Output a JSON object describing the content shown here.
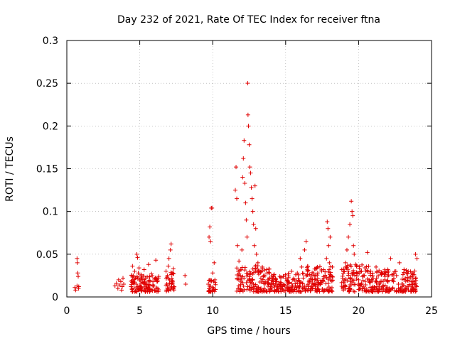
{
  "chart_data": {
    "type": "scatter",
    "title": "Day 232 of 2021, Rate Of TEC Index for receiver ftna",
    "xlabel": "GPS time / hours",
    "ylabel": "ROTI / TECUs",
    "xlim": [
      0,
      25
    ],
    "ylim": [
      0,
      0.3
    ],
    "xticks": [
      "0",
      "5",
      "10",
      "15",
      "20",
      "25"
    ],
    "yticks": [
      "0",
      "0.05",
      "0.1",
      "0.15",
      "0.2",
      "0.25",
      "0.3"
    ],
    "grid": true,
    "marker": "plus",
    "color": "#e00000",
    "series": [
      {
        "name": "ROTI",
        "points": [
          [
            0.55,
            0.011
          ],
          [
            0.6,
            0.008
          ],
          [
            0.7,
            0.013
          ],
          [
            0.7,
            0.045
          ],
          [
            0.72,
            0.04
          ],
          [
            0.75,
            0.028
          ],
          [
            0.78,
            0.024
          ],
          [
            0.8,
            0.01
          ],
          [
            0.82,
            0.012
          ],
          [
            3.3,
            0.013
          ],
          [
            3.4,
            0.016
          ],
          [
            3.5,
            0.01
          ],
          [
            3.55,
            0.02
          ],
          [
            3.6,
            0.014
          ],
          [
            3.7,
            0.018
          ],
          [
            3.75,
            0.008
          ],
          [
            3.8,
            0.012
          ],
          [
            3.85,
            0.022
          ],
          [
            3.9,
            0.015
          ],
          [
            4.4,
            0.012
          ],
          [
            4.45,
            0.025
          ],
          [
            4.5,
            0.036
          ],
          [
            4.55,
            0.018
          ],
          [
            4.6,
            0.01
          ],
          [
            4.65,
            0.03
          ],
          [
            4.7,
            0.022
          ],
          [
            4.75,
            0.015
          ],
          [
            4.8,
            0.05
          ],
          [
            4.85,
            0.046
          ],
          [
            4.9,
            0.028
          ],
          [
            4.95,
            0.034
          ],
          [
            5.0,
            0.02
          ],
          [
            5.05,
            0.012
          ],
          [
            5.1,
            0.026
          ],
          [
            5.2,
            0.017
          ],
          [
            5.3,
            0.032
          ],
          [
            5.4,
            0.022
          ],
          [
            5.5,
            0.014
          ],
          [
            5.6,
            0.038
          ],
          [
            5.7,
            0.019
          ],
          [
            5.8,
            0.027
          ],
          [
            5.9,
            0.013
          ],
          [
            6.0,
            0.021
          ],
          [
            6.1,
            0.043
          ],
          [
            6.2,
            0.018
          ],
          [
            6.3,
            0.024
          ],
          [
            6.8,
            0.03
          ],
          [
            6.85,
            0.015
          ],
          [
            6.9,
            0.025
          ],
          [
            6.95,
            0.036
          ],
          [
            7.0,
            0.045
          ],
          [
            7.05,
            0.02
          ],
          [
            7.1,
            0.055
          ],
          [
            7.15,
            0.062
          ],
          [
            7.2,
            0.028
          ],
          [
            7.25,
            0.018
          ],
          [
            7.3,
            0.033
          ],
          [
            7.35,
            0.012
          ],
          [
            8.1,
            0.025
          ],
          [
            8.15,
            0.015
          ],
          [
            9.7,
            0.015
          ],
          [
            9.75,
            0.07
          ],
          [
            9.8,
            0.082
          ],
          [
            9.85,
            0.065
          ],
          [
            9.9,
            0.104
          ],
          [
            9.95,
            0.104
          ],
          [
            10.0,
            0.028
          ],
          [
            10.05,
            0.01
          ],
          [
            10.1,
            0.04
          ],
          [
            10.15,
            0.02
          ],
          [
            11.55,
            0.125
          ],
          [
            11.6,
            0.152
          ],
          [
            11.65,
            0.115
          ],
          [
            11.7,
            0.06
          ],
          [
            11.75,
            0.03
          ],
          [
            11.8,
            0.042
          ],
          [
            11.9,
            0.025
          ],
          [
            12.0,
            0.055
          ],
          [
            12.05,
            0.14
          ],
          [
            12.1,
            0.162
          ],
          [
            12.15,
            0.183
          ],
          [
            12.2,
            0.133
          ],
          [
            12.25,
            0.11
          ],
          [
            12.3,
            0.09
          ],
          [
            12.35,
            0.07
          ],
          [
            12.4,
            0.25
          ],
          [
            12.42,
            0.213
          ],
          [
            12.45,
            0.2
          ],
          [
            12.5,
            0.178
          ],
          [
            12.55,
            0.152
          ],
          [
            12.6,
            0.145
          ],
          [
            12.65,
            0.128
          ],
          [
            12.7,
            0.115
          ],
          [
            12.75,
            0.1
          ],
          [
            12.8,
            0.085
          ],
          [
            12.85,
            0.06
          ],
          [
            12.9,
            0.13
          ],
          [
            12.95,
            0.08
          ],
          [
            13.0,
            0.05
          ],
          [
            13.1,
            0.04
          ],
          [
            13.2,
            0.03
          ],
          [
            13.3,
            0.022
          ],
          [
            13.4,
            0.035
          ],
          [
            13.5,
            0.025
          ],
          [
            13.6,
            0.018
          ],
          [
            13.7,
            0.032
          ],
          [
            13.8,
            0.02
          ],
          [
            13.9,
            0.028
          ],
          [
            14.0,
            0.015
          ],
          [
            14.2,
            0.026
          ],
          [
            14.4,
            0.018
          ],
          [
            14.6,
            0.024
          ],
          [
            14.8,
            0.012
          ],
          [
            15.0,
            0.022
          ],
          [
            15.2,
            0.016
          ],
          [
            15.4,
            0.03
          ],
          [
            15.6,
            0.02
          ],
          [
            15.8,
            0.028
          ],
          [
            16.0,
            0.045
          ],
          [
            16.1,
            0.035
          ],
          [
            16.2,
            0.022
          ],
          [
            16.3,
            0.055
          ],
          [
            16.4,
            0.065
          ],
          [
            16.5,
            0.03
          ],
          [
            16.6,
            0.018
          ],
          [
            16.8,
            0.025
          ],
          [
            17.0,
            0.02
          ],
          [
            17.2,
            0.028
          ],
          [
            17.4,
            0.015
          ],
          [
            17.6,
            0.032
          ],
          [
            17.8,
            0.045
          ],
          [
            17.85,
            0.088
          ],
          [
            17.9,
            0.08
          ],
          [
            17.95,
            0.06
          ],
          [
            18.0,
            0.04
          ],
          [
            18.05,
            0.07
          ],
          [
            18.1,
            0.025
          ],
          [
            18.2,
            0.035
          ],
          [
            18.9,
            0.022
          ],
          [
            19.0,
            0.03
          ],
          [
            19.1,
            0.04
          ],
          [
            19.2,
            0.055
          ],
          [
            19.3,
            0.07
          ],
          [
            19.4,
            0.085
          ],
          [
            19.5,
            0.112
          ],
          [
            19.55,
            0.1
          ],
          [
            19.6,
            0.095
          ],
          [
            19.65,
            0.06
          ],
          [
            19.7,
            0.05
          ],
          [
            19.8,
            0.038
          ],
          [
            19.9,
            0.028
          ],
          [
            20.0,
            0.02
          ],
          [
            20.2,
            0.03
          ],
          [
            20.4,
            0.025
          ],
          [
            20.6,
            0.052
          ],
          [
            20.8,
            0.018
          ],
          [
            21.0,
            0.022
          ],
          [
            21.2,
            0.035
          ],
          [
            21.4,
            0.015
          ],
          [
            21.6,
            0.028
          ],
          [
            21.8,
            0.02
          ],
          [
            22.0,
            0.032
          ],
          [
            22.2,
            0.045
          ],
          [
            22.4,
            0.018
          ],
          [
            22.6,
            0.025
          ],
          [
            22.8,
            0.04
          ],
          [
            23.0,
            0.015
          ],
          [
            23.2,
            0.022
          ],
          [
            23.4,
            0.03
          ],
          [
            23.6,
            0.018
          ],
          [
            23.8,
            0.026
          ],
          [
            23.9,
            0.05
          ],
          [
            24.0,
            0.045
          ]
        ]
      }
    ],
    "dense_bands": [
      {
        "x": [
          4.4,
          6.3
        ],
        "y": [
          0.006,
          0.026
        ]
      },
      {
        "x": [
          6.8,
          7.4
        ],
        "y": [
          0.006,
          0.03
        ]
      },
      {
        "x": [
          9.7,
          10.2
        ],
        "y": [
          0.006,
          0.022
        ]
      },
      {
        "x": [
          11.6,
          14.0
        ],
        "y": [
          0.006,
          0.038
        ]
      },
      {
        "x": [
          14.0,
          16.2
        ],
        "y": [
          0.006,
          0.028
        ]
      },
      {
        "x": [
          16.2,
          18.3
        ],
        "y": [
          0.006,
          0.036
        ]
      },
      {
        "x": [
          18.8,
          20.7
        ],
        "y": [
          0.006,
          0.038
        ]
      },
      {
        "x": [
          20.7,
          24.0
        ],
        "y": [
          0.006,
          0.032
        ]
      }
    ]
  }
}
